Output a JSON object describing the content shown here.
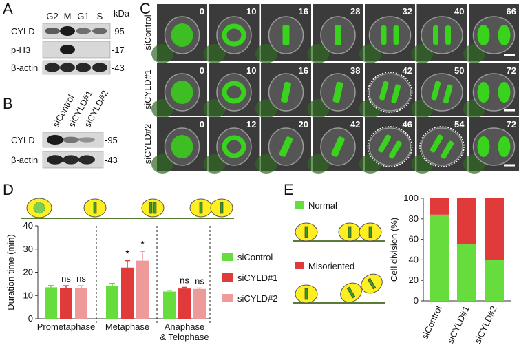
{
  "panel_letters": [
    "A",
    "B",
    "C",
    "D",
    "E"
  ],
  "panel_a": {
    "columns": [
      "G2",
      "M",
      "G1",
      "S"
    ],
    "unit": "kDa",
    "rows": [
      {
        "name": "CYLD",
        "marker": "-95"
      },
      {
        "name": "p-H3",
        "marker": "-17"
      },
      {
        "name": "β-actin",
        "marker": "-43"
      }
    ]
  },
  "panel_b": {
    "columns": [
      "siControl",
      "siCYLD#1",
      "siCYLD#2"
    ],
    "rows": [
      {
        "name": "CYLD",
        "marker": "-95"
      },
      {
        "name": "β-actin",
        "marker": "-43"
      }
    ]
  },
  "panel_c": {
    "rows": [
      {
        "name": "siControl",
        "times": [
          0,
          10,
          16,
          28,
          32,
          40,
          66
        ]
      },
      {
        "name": "siCYLD#1",
        "times": [
          0,
          10,
          16,
          38,
          42,
          50,
          72
        ]
      },
      {
        "name": "siCYLD#2",
        "times": [
          0,
          12,
          20,
          42,
          46,
          54,
          72
        ]
      }
    ]
  },
  "chart_data": [
    {
      "type": "bar",
      "y_label": "Duration time (min)",
      "categories": [
        "Prometaphase",
        "Metaphase",
        "Anaphase\n& Telophase"
      ],
      "series": [
        {
          "name": "siControl",
          "color": "#66dd3c",
          "values": [
            13.5,
            14,
            11.7
          ],
          "errors": [
            0.8,
            1.2,
            0.4
          ]
        },
        {
          "name": "siCYLD#1",
          "color": "#e03a3a",
          "values": [
            13.2,
            22,
            13
          ],
          "errors": [
            1,
            3,
            0.5
          ],
          "significance": [
            "ns",
            "*",
            "ns"
          ]
        },
        {
          "name": "siCYLD#2",
          "color": "#ef9a9a",
          "values": [
            13.2,
            25,
            12.8
          ],
          "errors": [
            1,
            4,
            0.4
          ],
          "significance": [
            "ns",
            "*",
            "ns"
          ]
        }
      ],
      "ylim": [
        0,
        40
      ],
      "yticks": [
        0,
        10,
        20,
        30,
        40
      ],
      "legend": "right"
    },
    {
      "type": "stacked_bar",
      "y_label": "Cell division (%)",
      "categories": [
        "siControl",
        "siCYLD#1",
        "siCYLD#2"
      ],
      "series": [
        {
          "name": "Normal",
          "color": "#66dd3c",
          "values": [
            84,
            55,
            40
          ]
        },
        {
          "name": "Misoriented",
          "color": "#e03a3a",
          "values": [
            16,
            45,
            60
          ]
        }
      ],
      "ylim": [
        0,
        100
      ],
      "yticks": [
        0,
        20,
        40,
        60,
        80,
        100
      ],
      "legend": "left"
    }
  ]
}
